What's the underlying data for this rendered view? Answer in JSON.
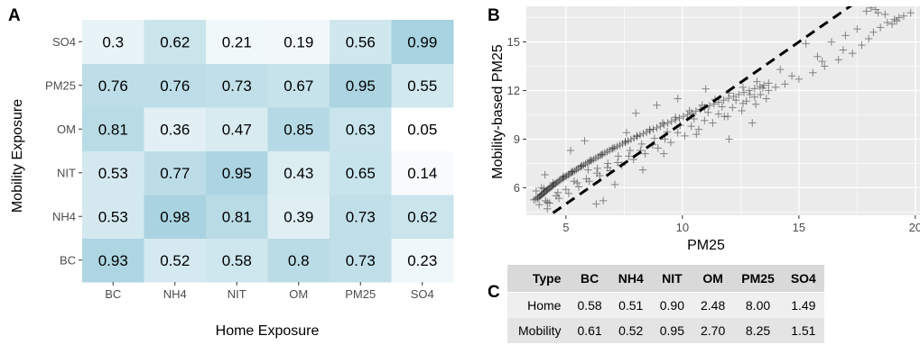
{
  "chart_data": [
    {
      "panel": "A",
      "type": "heatmap",
      "xlabel": "Home Exposure",
      "ylabel": "Mobility Exposure",
      "x_categories": [
        "BC",
        "NH4",
        "NIT",
        "OM",
        "PM25",
        "SO4"
      ],
      "y_categories": [
        "BC",
        "NH4",
        "NIT",
        "OM",
        "PM25",
        "SO4"
      ],
      "y_order_top_to_bottom": [
        "SO4",
        "PM25",
        "OM",
        "NIT",
        "NH4",
        "BC"
      ],
      "values": [
        [
          0.93,
          0.52,
          0.58,
          0.8,
          0.73,
          0.23
        ],
        [
          0.53,
          0.98,
          0.81,
          0.39,
          0.73,
          0.62
        ],
        [
          0.53,
          0.77,
          0.95,
          0.43,
          0.65,
          0.14
        ],
        [
          0.81,
          0.36,
          0.47,
          0.85,
          0.63,
          0.05
        ],
        [
          0.76,
          0.76,
          0.73,
          0.67,
          0.95,
          0.55
        ],
        [
          0.3,
          0.62,
          0.21,
          0.19,
          0.56,
          0.99
        ]
      ],
      "value_labels": [
        [
          "0.93",
          "0.52",
          "0.58",
          "0.8",
          "0.73",
          "0.23"
        ],
        [
          "0.53",
          "0.98",
          "0.81",
          "0.39",
          "0.73",
          "0.62"
        ],
        [
          "0.53",
          "0.77",
          "0.95",
          "0.43",
          "0.65",
          "0.14"
        ],
        [
          "0.81",
          "0.36",
          "0.47",
          "0.85",
          "0.63",
          "0.05"
        ],
        [
          "0.76",
          "0.76",
          "0.73",
          "0.67",
          "0.95",
          "0.55"
        ],
        [
          "0.3",
          "0.62",
          "0.21",
          "0.19",
          "0.56",
          "0.99"
        ]
      ],
      "color_low": "#ffffff",
      "color_high": "#a8d3e0"
    },
    {
      "panel": "B",
      "type": "scatter",
      "xlabel": "PM25",
      "ylabel": "Mobility-based PM25",
      "xlim": [
        3.3,
        20.2
      ],
      "ylim": [
        4.3,
        17.2
      ],
      "xticks": [
        5,
        10,
        15,
        20
      ],
      "yticks": [
        6,
        9,
        12,
        15
      ],
      "marker": "plus",
      "point_color": "#000000",
      "panel_background": "#ebebeb",
      "grid": true,
      "reference_line": {
        "style": "dashed",
        "slope": 1,
        "intercept": 0
      },
      "x": [
        3.62,
        3.7,
        3.78,
        3.8,
        3.86,
        3.9,
        3.94,
        3.97,
        4.02,
        4.06,
        4.1,
        4.15,
        4.18,
        4.22,
        4.27,
        4.31,
        4.36,
        4.4,
        4.45,
        4.5,
        4.55,
        4.61,
        4.66,
        4.72,
        4.78,
        4.85,
        4.9,
        4.97,
        5.03,
        5.1,
        5.16,
        5.23,
        5.3,
        5.38,
        5.45,
        5.52,
        5.6,
        5.68,
        5.76,
        5.84,
        5.93,
        6.01,
        6.1,
        6.19,
        6.28,
        6.38,
        6.47,
        6.57,
        6.67,
        6.77,
        6.87,
        6.98,
        7.09,
        7.2,
        7.31,
        7.43,
        7.55,
        7.67,
        7.79,
        7.92,
        8.05,
        8.18,
        8.32,
        8.46,
        8.6,
        8.75,
        8.9,
        9.05,
        9.21,
        9.37,
        9.53,
        9.7,
        9.87,
        10.04,
        10.22,
        10.4,
        10.58,
        10.77,
        10.96,
        11.16,
        11.36,
        11.56,
        11.77,
        11.98,
        12.2,
        12.42,
        12.64,
        12.87,
        13.1,
        13.33,
        13.5,
        13.7,
        4.05,
        4.45,
        4.88,
        5.25,
        5.66,
        6.05,
        6.52,
        7.02,
        7.55,
        8.05,
        8.6,
        9.15,
        9.7,
        10.3,
        10.85,
        11.4,
        12.0,
        12.6,
        13.2,
        4.3,
        4.7,
        5.12,
        5.55,
        6.0,
        6.45,
        6.9,
        7.4,
        7.9,
        8.4,
        8.95,
        9.5,
        10.1,
        10.7,
        11.3,
        11.95,
        12.55,
        13.15,
        13.6,
        3.95,
        4.2,
        4.65,
        5.35,
        5.95,
        6.35,
        6.8,
        7.25,
        7.75,
        8.25,
        8.8,
        9.35,
        9.9,
        10.5,
        11.1,
        11.7,
        12.3,
        12.9,
        13.45,
        3.72,
        3.85,
        4.12,
        4.58,
        5.0,
        5.48,
        5.88,
        6.33,
        6.78,
        7.22,
        7.7,
        8.2,
        8.72,
        9.25,
        9.8,
        10.38,
        10.95,
        11.55,
        12.15,
        12.75,
        13.35,
        7.6,
        8.9,
        9.8,
        5.2,
        5.8,
        6.3,
        6.6,
        4.1,
        4.2,
        7.1,
        8.3,
        9.2,
        10.6,
        11.8,
        12.6,
        13.1,
        13.7,
        14.0,
        14.4,
        15.0,
        15.6,
        16.1,
        16.7,
        17.3,
        17.7,
        18.0,
        18.2,
        18.5,
        18.8,
        19.1,
        19.3,
        19.5,
        19.8,
        18.3,
        17.9,
        18.7,
        19.0,
        15.3,
        16.4,
        17.0,
        14.7,
        15.8,
        16.9,
        17.5,
        12.0,
        13.0,
        14.2,
        18.1,
        18.4,
        19.2,
        16.0,
        8.0,
        11.0
      ],
      "y": [
        5.25,
        5.3,
        5.35,
        5.4,
        5.45,
        5.5,
        5.55,
        5.6,
        5.65,
        5.7,
        5.75,
        5.8,
        5.85,
        5.9,
        5.95,
        6.0,
        6.05,
        6.1,
        6.15,
        6.2,
        6.26,
        6.32,
        6.38,
        6.44,
        6.5,
        6.56,
        6.62,
        6.68,
        6.74,
        6.8,
        6.86,
        6.92,
        6.98,
        7.05,
        7.12,
        7.19,
        7.26,
        7.33,
        7.4,
        7.47,
        7.54,
        7.61,
        7.68,
        7.75,
        7.83,
        7.91,
        7.99,
        8.07,
        8.15,
        8.23,
        8.31,
        8.39,
        8.47,
        8.55,
        8.63,
        8.71,
        8.8,
        8.89,
        8.98,
        9.07,
        9.16,
        9.25,
        9.34,
        9.43,
        9.52,
        9.61,
        9.7,
        9.8,
        9.9,
        10.0,
        10.1,
        10.2,
        10.3,
        10.4,
        10.51,
        10.62,
        10.73,
        10.84,
        10.95,
        11.06,
        11.17,
        11.28,
        11.4,
        11.52,
        11.64,
        11.76,
        11.88,
        12.0,
        12.12,
        12.24,
        12.33,
        12.45,
        5.95,
        6.3,
        6.7,
        7.0,
        7.35,
        7.7,
        8.05,
        8.45,
        8.85,
        9.2,
        9.6,
        10.0,
        10.35,
        10.75,
        11.1,
        11.45,
        11.85,
        12.2,
        12.55,
        5.05,
        5.35,
        5.65,
        6.05,
        6.4,
        6.75,
        7.05,
        7.4,
        7.75,
        8.1,
        8.45,
        8.8,
        9.2,
        9.6,
        10.0,
        10.4,
        10.75,
        11.15,
        11.5,
        6.0,
        5.1,
        5.7,
        6.4,
        7.1,
        7.2,
        7.5,
        7.95,
        8.3,
        8.7,
        9.05,
        9.45,
        9.85,
        10.25,
        10.65,
        11.0,
        11.4,
        11.75,
        12.15,
        5.8,
        4.95,
        5.2,
        5.5,
        5.9,
        6.3,
        6.55,
        6.9,
        7.25,
        7.55,
        7.95,
        8.3,
        8.65,
        9.0,
        9.4,
        9.8,
        10.15,
        10.55,
        10.95,
        11.35,
        11.75,
        9.4,
        11.1,
        11.5,
        8.3,
        8.9,
        5.0,
        5.2,
        6.8,
        4.7,
        6.2,
        7.1,
        8.1,
        9.3,
        10.4,
        11.2,
        11.6,
        12.0,
        12.2,
        12.4,
        12.7,
        13.1,
        13.5,
        13.9,
        14.3,
        14.8,
        15.2,
        15.6,
        15.9,
        16.2,
        16.4,
        16.5,
        16.6,
        16.8,
        17.0,
        16.9,
        16.7,
        16.1,
        14.9,
        15.0,
        15.4,
        12.9,
        14.1,
        14.5,
        15.8,
        9.0,
        10.0,
        13.3,
        17.1,
        16.8,
        16.3,
        13.8,
        10.6,
        12.1
      ]
    },
    {
      "panel": "C",
      "type": "table",
      "columns": [
        "Type",
        "BC",
        "NH4",
        "NIT",
        "OM",
        "PM25",
        "SO4"
      ],
      "rows": [
        [
          "Home",
          "0.58",
          "0.51",
          "0.90",
          "2.48",
          "8.00",
          "1.49"
        ],
        [
          "Mobility",
          "0.61",
          "0.52",
          "0.95",
          "2.70",
          "8.25",
          "1.51"
        ]
      ]
    }
  ],
  "panel_letters": {
    "a": "A",
    "b": "B",
    "c": "C"
  }
}
